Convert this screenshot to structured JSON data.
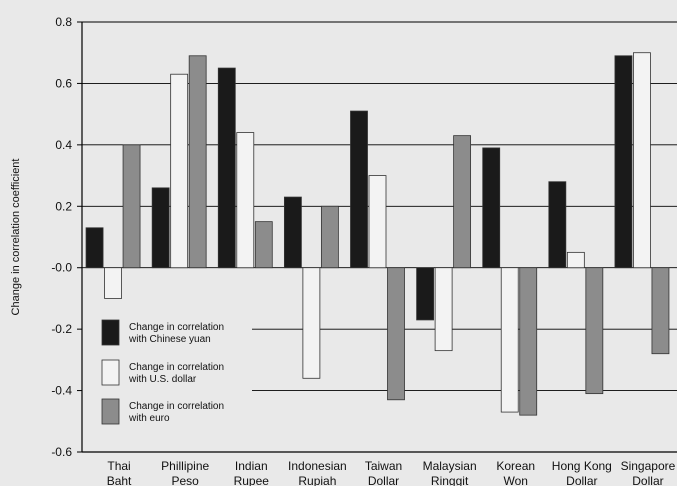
{
  "chart_data": {
    "type": "bar",
    "ylabel": "Change in correlation coefficient",
    "xlabel": "",
    "ylim": [
      -0.6,
      0.8
    ],
    "yticks": [
      "0.8",
      "0.6",
      "0.4",
      "0.2",
      "-0.0",
      "-0.2",
      "-0.4",
      "-0.6"
    ],
    "grid": "horizontal",
    "legend_position": "lower-left",
    "categories": [
      {
        "line1": "Thai",
        "line2": "Baht"
      },
      {
        "line1": "Phillipine",
        "line2": "Peso"
      },
      {
        "line1": "Indian",
        "line2": "Rupee"
      },
      {
        "line1": "Indonesian",
        "line2": "Rupiah"
      },
      {
        "line1": "Taiwan",
        "line2": "Dollar"
      },
      {
        "line1": "Malaysian",
        "line2": "Ringgit"
      },
      {
        "line1": "Korean",
        "line2": "Won"
      },
      {
        "line1": "Hong Kong",
        "line2": "Dollar"
      },
      {
        "line1": "Singapore",
        "line2": "Dollar"
      }
    ],
    "series": [
      {
        "name_line1": "Change in correlation",
        "name_line2": "with Chinese yuan",
        "color": "#1a1a1a",
        "values": [
          0.13,
          0.26,
          0.65,
          0.23,
          0.51,
          -0.17,
          0.39,
          0.28,
          0.69
        ]
      },
      {
        "name_line1": "Change in correlation",
        "name_line2": "with U.S. dollar",
        "color": "#f3f3f3",
        "values": [
          -0.1,
          0.63,
          0.44,
          -0.36,
          0.3,
          -0.27,
          -0.47,
          0.05,
          0.7
        ]
      },
      {
        "name_line1": "Change in correlation",
        "name_line2": "with euro",
        "color": "#8c8c8c",
        "values": [
          0.4,
          0.69,
          0.15,
          0.2,
          -0.43,
          0.43,
          -0.48,
          -0.41,
          -0.28
        ]
      }
    ]
  }
}
